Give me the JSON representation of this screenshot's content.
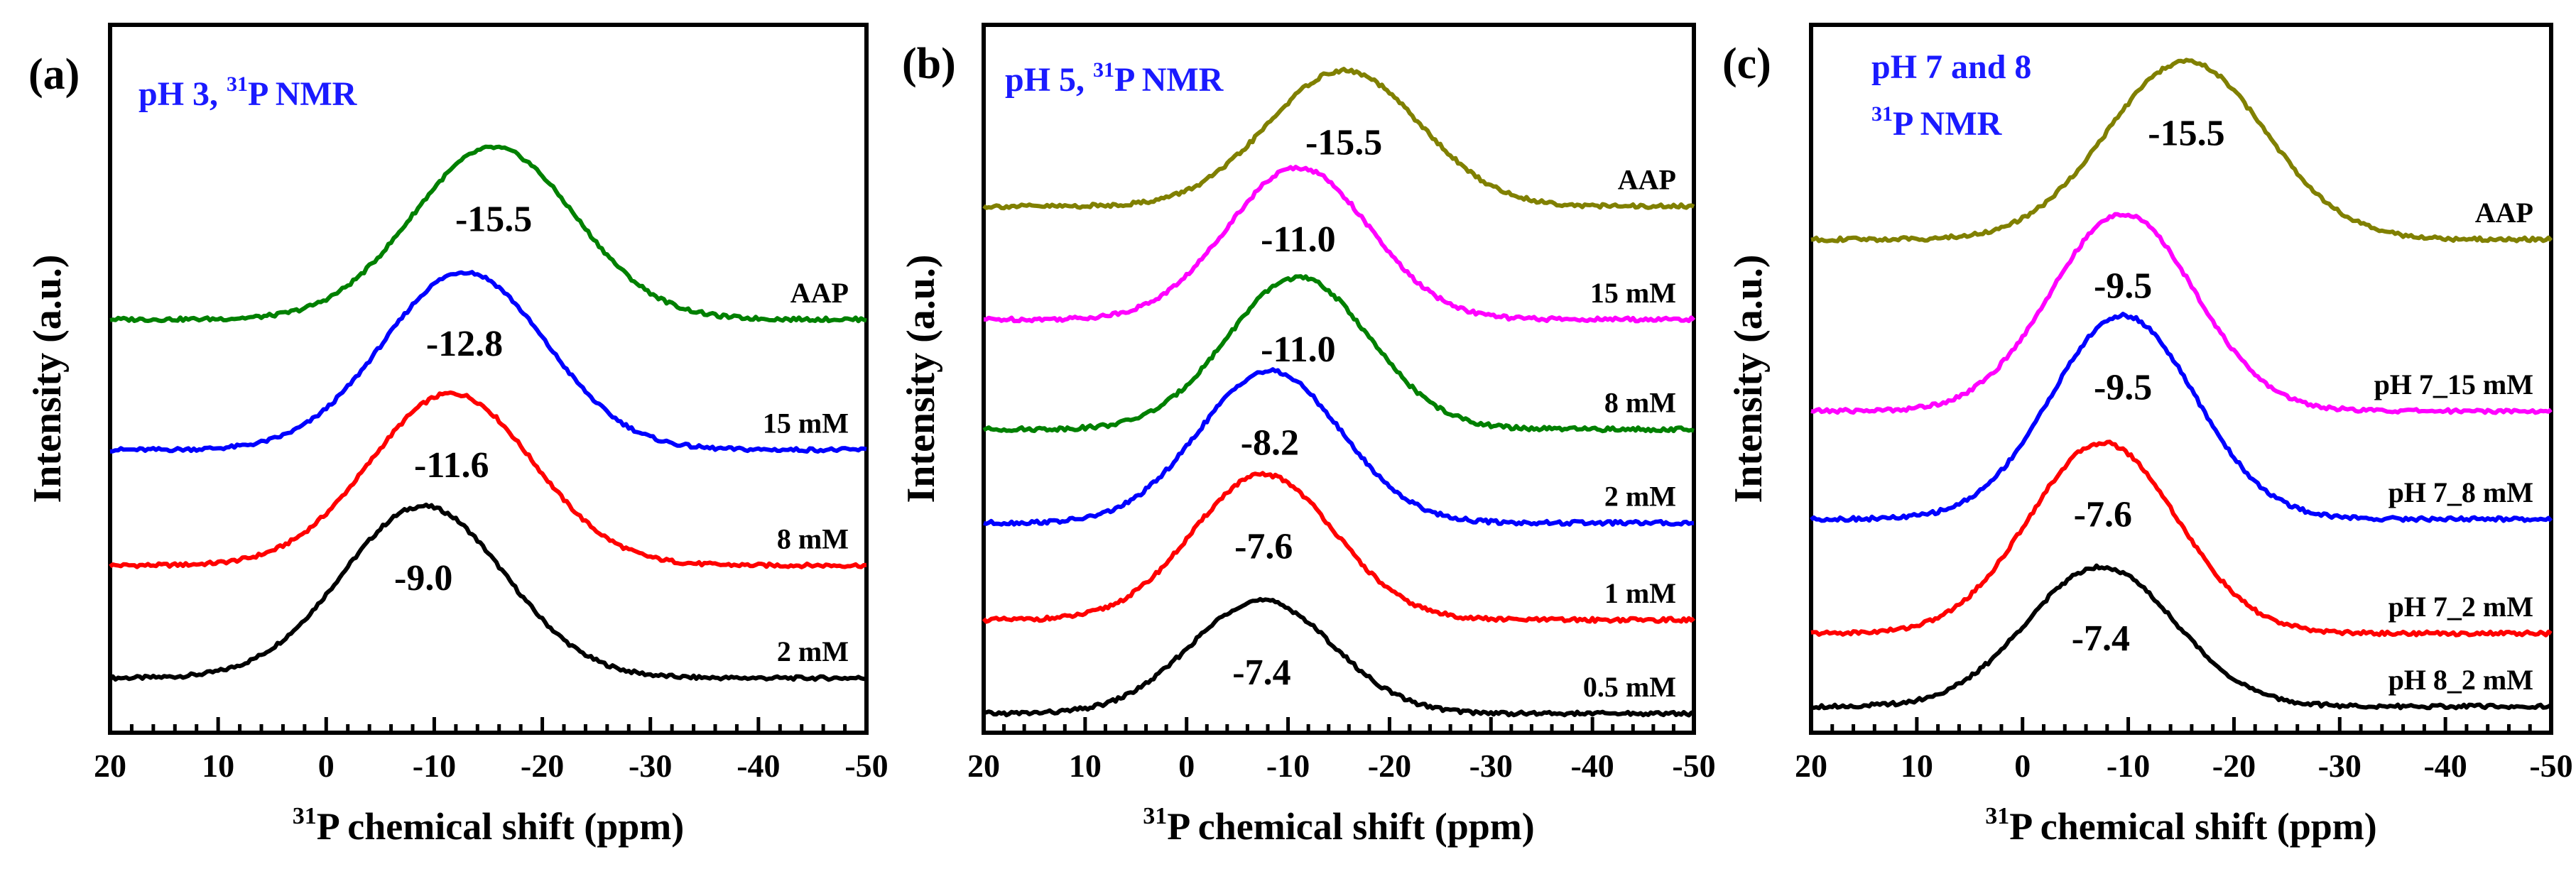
{
  "chart_data": [
    {
      "type": "line",
      "panel_label": "(a)",
      "title_line1": "pH 3, ",
      "title_sup": "31",
      "title_rest": "P NMR",
      "title_line2": "",
      "xlabel_sup": "31",
      "xlabel_rest": "P chemical shift (ppm)",
      "ylabel": "Intensity (a.u.)",
      "xlim": [
        20,
        -50
      ],
      "xticks": [
        "20",
        "10",
        "0",
        "-10",
        "-20",
        "-30",
        "-40",
        "-50"
      ],
      "series": [
        {
          "name": "2 mM",
          "color": "#000000",
          "peak": -9.0,
          "peak_label": "-9.0",
          "baseline": 0.0,
          "height": 0.29,
          "width": 7.5
        },
        {
          "name": "8 mM",
          "color": "#ff0000",
          "peak": -11.6,
          "peak_label": "-11.6",
          "baseline": 0.19,
          "height": 0.29,
          "width": 7.5
        },
        {
          "name": "15 mM",
          "color": "#0000ff",
          "peak": -12.8,
          "peak_label": "-12.8",
          "baseline": 0.385,
          "height": 0.3,
          "width": 7.5
        },
        {
          "name": "AAP",
          "color": "#008000",
          "peak": -15.5,
          "peak_label": "-15.5",
          "baseline": 0.605,
          "height": 0.29,
          "width": 7.5
        }
      ]
    },
    {
      "type": "line",
      "panel_label": "(b)",
      "title_line1": "pH 5, ",
      "title_sup": "31",
      "title_rest": "P NMR",
      "title_line2": "",
      "xlabel_sup": "31",
      "xlabel_rest": "P chemical shift (ppm)",
      "ylabel": "Intensity (a.u.)",
      "xlim": [
        20,
        -50
      ],
      "xticks": [
        "20",
        "10",
        "0",
        "-10",
        "-20",
        "-30",
        "-40",
        "-50"
      ],
      "series": [
        {
          "name": "0.5 mM",
          "color": "#000000",
          "peak": -7.4,
          "peak_label": "-7.4",
          "baseline": 0.0,
          "height": 0.175,
          "width": 7.0
        },
        {
          "name": "1 mM",
          "color": "#ff0000",
          "peak": -7.6,
          "peak_label": "-7.6",
          "baseline": 0.145,
          "height": 0.225,
          "width": 7.0
        },
        {
          "name": "2 mM",
          "color": "#0000ff",
          "peak": -8.2,
          "peak_label": "-8.2",
          "baseline": 0.295,
          "height": 0.235,
          "width": 7.0
        },
        {
          "name": "8 mM",
          "color": "#008000",
          "peak": -11.0,
          "peak_label": "-11.0",
          "baseline": 0.44,
          "height": 0.235,
          "width": 7.0
        },
        {
          "name": "15 mM",
          "color": "#ff00ff",
          "peak": -11.0,
          "peak_label": "-11.0",
          "baseline": 0.61,
          "height": 0.235,
          "width": 7.0
        },
        {
          "name": "AAP",
          "color": "#808000",
          "peak": -15.5,
          "peak_label": "-15.5",
          "baseline": 0.785,
          "height": 0.21,
          "width": 7.5
        }
      ]
    },
    {
      "type": "line",
      "panel_label": "(c)",
      "title_line1": "pH 7 and 8",
      "title_sup": "31",
      "title_rest": "P NMR",
      "title_line2": "yes",
      "xlabel_sup": "31",
      "xlabel_rest": "P chemical shift (ppm)",
      "ylabel": "Intensity (a.u.)",
      "xlim": [
        20,
        -50
      ],
      "xticks": [
        "20",
        "10",
        "0",
        "-10",
        "-20",
        "-30",
        "-40",
        "-50"
      ],
      "series": [
        {
          "name": "pH 8_2 mM",
          "color": "#000000",
          "peak": -7.4,
          "peak_label": "-7.4",
          "baseline": 0.0,
          "height": 0.22,
          "width": 7.0
        },
        {
          "name": "pH 7_2 mM",
          "color": "#ff0000",
          "peak": -7.6,
          "peak_label": "-7.6",
          "baseline": 0.115,
          "height": 0.3,
          "width": 7.0
        },
        {
          "name": "pH 7_8 mM",
          "color": "#0000ff",
          "peak": -9.5,
          "peak_label": "-9.5",
          "baseline": 0.295,
          "height": 0.32,
          "width": 6.8
        },
        {
          "name": "pH 7_15 mM",
          "color": "#ff00ff",
          "peak": -9.5,
          "peak_label": "-9.5",
          "baseline": 0.465,
          "height": 0.31,
          "width": 6.8
        },
        {
          "name": "AAP",
          "color": "#808000",
          "peak": -15.5,
          "peak_label": "-15.5",
          "baseline": 0.735,
          "height": 0.28,
          "width": 7.5
        }
      ]
    }
  ]
}
